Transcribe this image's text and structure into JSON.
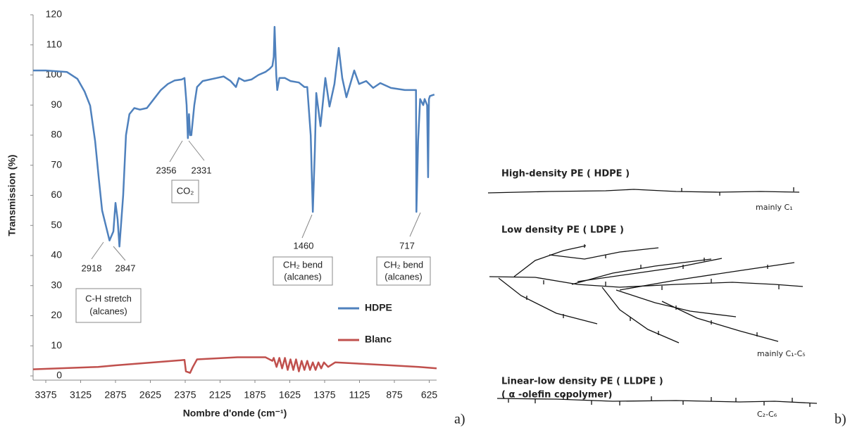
{
  "chart_data": {
    "type": "line",
    "xlabel": "Nombre d'onde (cm⁻¹)",
    "ylabel": "Transmission (%)",
    "xlim": [
      3466,
      572
    ],
    "ylim": [
      0,
      120
    ],
    "xticks": [
      3375,
      3125,
      2875,
      2625,
      2375,
      2125,
      1875,
      1625,
      1375,
      1125,
      875,
      625
    ],
    "yticks": [
      0,
      10,
      20,
      30,
      40,
      50,
      60,
      70,
      80,
      90,
      100,
      110,
      120
    ],
    "series": [
      {
        "name": "HDPE",
        "color": "#4f81bd",
        "x": [
          3466,
          3375,
          3224,
          3148,
          3097,
          3057,
          3021,
          2996,
          2971,
          2918,
          2890,
          2875,
          2860,
          2847,
          2820,
          2800,
          2775,
          2740,
          2700,
          2650,
          2600,
          2550,
          2500,
          2450,
          2400,
          2380,
          2365,
          2356,
          2348,
          2340,
          2331,
          2310,
          2290,
          2250,
          2150,
          2100,
          2050,
          2011,
          1990,
          1950,
          1900,
          1850,
          1800,
          1770,
          1750,
          1740,
          1734,
          1722,
          1715,
          1700,
          1660,
          1620,
          1560,
          1520,
          1500,
          1475,
          1460,
          1445,
          1435,
          1405,
          1370,
          1340,
          1305,
          1274,
          1249,
          1219,
          1163,
          1128,
          1077,
          1027,
          976,
          900,
          800,
          720,
          717,
          705,
          690,
          668,
          658,
          640,
          633,
          627,
          620,
          588
        ],
        "values": [
          101.5,
          101.5,
          101,
          98.7,
          94.5,
          89.8,
          78,
          66,
          55,
          45,
          48,
          57.5,
          52,
          43,
          60,
          80,
          87,
          89,
          88.5,
          89,
          92,
          95,
          97,
          98.2,
          98.5,
          99,
          90,
          79,
          87,
          80,
          80,
          90,
          96,
          98,
          99,
          99.5,
          98,
          96,
          99,
          98,
          98.5,
          100,
          101,
          102,
          103,
          106,
          116,
          100,
          95,
          99,
          99,
          98,
          97.5,
          96,
          96,
          80,
          54.5,
          75,
          94,
          83,
          99,
          89.5,
          97,
          109,
          99,
          92.6,
          101.5,
          97,
          98,
          95.7,
          97.3,
          95.7,
          95,
          95,
          54.5,
          78,
          92,
          90,
          92,
          90,
          66,
          92,
          93,
          93.5
        ]
      },
      {
        "name": "Blanc",
        "color": "#c0504d",
        "x": [
          3466,
          3000,
          2875,
          2600,
          2380,
          2370,
          2340,
          2320,
          2290,
          2000,
          1800,
          1750,
          1740,
          1720,
          1700,
          1680,
          1660,
          1640,
          1620,
          1600,
          1580,
          1560,
          1540,
          1520,
          1500,
          1480,
          1460,
          1440,
          1420,
          1400,
          1380,
          1350,
          1300,
          1100,
          900,
          700,
          572
        ],
        "values": [
          2.2,
          3,
          3.5,
          4.5,
          5.3,
          1.5,
          1,
          3,
          5.5,
          6.2,
          6.2,
          5,
          6,
          3,
          6,
          2.5,
          6,
          2,
          5.5,
          2,
          5.5,
          1.5,
          5,
          2,
          5,
          2,
          4.5,
          2,
          4.5,
          2.5,
          4.5,
          3,
          4.5,
          4,
          3.5,
          3,
          2.5
        ]
      }
    ],
    "annotations": [
      "2918",
      "2847",
      "C-H stretch",
      "(alcanes)",
      "2356",
      "2331",
      "CO₂",
      "1460",
      "CH₂ bend",
      "(alcanes)",
      "717",
      "CH₂ bend",
      "(alcanes)"
    ],
    "legend": "lower right"
  },
  "diagram": {
    "hdpe_title": "High-density PE ( HDPE )",
    "hdpe_note": "mainly C₁",
    "ldpe_title": "Low density PE ( LDPE )",
    "ldpe_note": "mainly C₁-C₅",
    "lldpe_title": "Linear-low density PE ( LLDPE )",
    "lldpe_subtitle": "( α -olefin copolymer)",
    "lldpe_note": "C₂-C₆"
  },
  "panel_labels": [
    "a)",
    "b)"
  ]
}
